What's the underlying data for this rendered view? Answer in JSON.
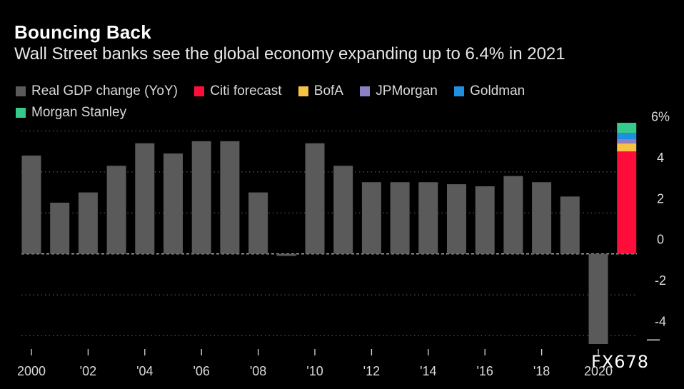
{
  "chart_data": {
    "type": "bar",
    "title": "Bouncing Back",
    "subtitle": "Wall Street banks see the global economy expanding up to 6.4% in 2021",
    "legend": [
      {
        "label": "Real GDP change (YoY)",
        "color": "#5a5a5a"
      },
      {
        "label": "Citi forecast",
        "color": "#ff0d3a"
      },
      {
        "label": "BofA",
        "color": "#f6c344"
      },
      {
        "label": "JPMorgan",
        "color": "#8b7fc7"
      },
      {
        "label": "Goldman",
        "color": "#1f8fe0"
      },
      {
        "label": "Morgan Stanley",
        "color": "#35c98c"
      }
    ],
    "years": [
      2000,
      2001,
      2002,
      2003,
      2004,
      2005,
      2006,
      2007,
      2008,
      2009,
      2010,
      2011,
      2012,
      2013,
      2014,
      2015,
      2016,
      2017,
      2018,
      2019,
      2020
    ],
    "values": [
      4.8,
      2.5,
      3.0,
      4.3,
      5.4,
      4.9,
      5.5,
      5.5,
      3.0,
      -0.1,
      5.4,
      4.3,
      3.5,
      3.5,
      3.5,
      3.4,
      3.3,
      3.8,
      3.5,
      2.8,
      -4.4
    ],
    "forecast_2021": {
      "year": 2021,
      "segments": [
        {
          "name": "Citi forecast",
          "value": 5.0,
          "color": "#ff0d3a"
        },
        {
          "name": "BofA",
          "value": 0.4,
          "color": "#f6c344"
        },
        {
          "name": "JPMorgan",
          "value": 0.2,
          "color": "#8b7fc7"
        },
        {
          "name": "Goldman",
          "value": 0.3,
          "color": "#1f8fe0"
        },
        {
          "name": "Morgan Stanley",
          "value": 0.5,
          "color": "#35c98c"
        }
      ]
    },
    "x_tick_labels": [
      "2000",
      "'02",
      "'04",
      "'06",
      "'08",
      "'10",
      "'12",
      "'14",
      "'16",
      "'18",
      "2020"
    ],
    "y_ticks": [
      6,
      4,
      2,
      0,
      -2,
      -4
    ],
    "y_tick_labels": [
      "6%",
      "4",
      "2",
      "0",
      "-2",
      "-4"
    ],
    "ylim": [
      -4.4,
      6.4
    ],
    "grid": true,
    "legend_position": "top-left",
    "bar_color": "#5a5a5a"
  },
  "watermark": "FX678"
}
